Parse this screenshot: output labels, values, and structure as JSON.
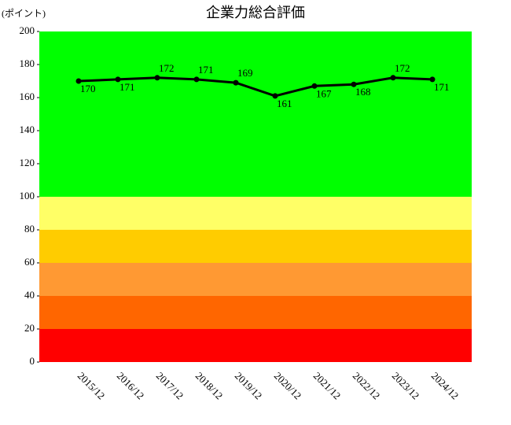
{
  "chart_data": {
    "type": "line",
    "title": "企業力総合評価",
    "y_label": "(ポイント)",
    "categories": [
      "2015/12",
      "2016/12",
      "2017/12",
      "2018/12",
      "2019/12",
      "2020/12",
      "2021/12",
      "2022/12",
      "2023/12",
      "2024/12"
    ],
    "values": [
      170,
      171,
      172,
      171,
      169,
      161,
      167,
      168,
      172,
      171
    ],
    "color": "#000000",
    "ylim": [
      0,
      200
    ],
    "yticks": [
      0,
      20,
      40,
      60,
      80,
      100,
      120,
      140,
      160,
      180,
      200
    ],
    "bands": [
      {
        "from": 0,
        "to": 20,
        "color": "#ff0000"
      },
      {
        "from": 20,
        "to": 40,
        "color": "#ff6600"
      },
      {
        "from": 40,
        "to": 60,
        "color": "#ff9933"
      },
      {
        "from": 60,
        "to": 80,
        "color": "#ffcc00"
      },
      {
        "from": 80,
        "to": 100,
        "color": "#ffff66"
      },
      {
        "from": 100,
        "to": 200,
        "color": "#00ff00"
      }
    ]
  }
}
